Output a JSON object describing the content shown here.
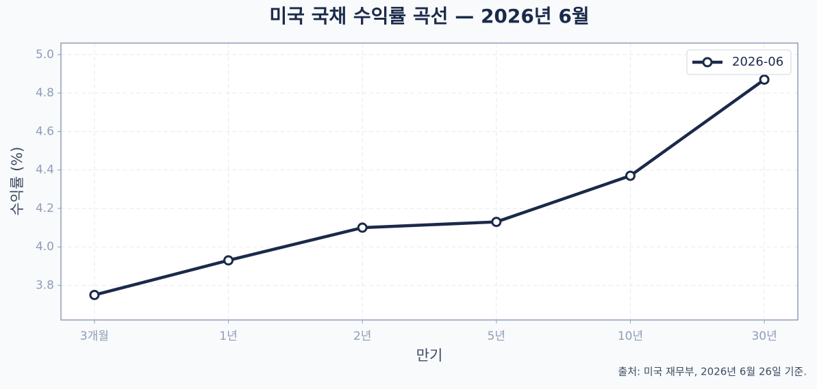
{
  "chart_data": {
    "type": "line",
    "title": "미국 국채 수익률 곡선 — 2026년 6월",
    "x_label": "만기",
    "y_label": "수익률 (%)",
    "source": "출처: 미국 재무부, 2026년 6월 26일 기준.",
    "categories": [
      "3개월",
      "1년",
      "2년",
      "5년",
      "10년",
      "30년"
    ],
    "series": [
      {
        "name": "2026-06",
        "color": "#1b2a4a",
        "values": [
          3.75,
          3.93,
          4.1,
          4.13,
          4.37,
          4.87
        ]
      }
    ],
    "ylim": [
      3.62,
      5.06
    ],
    "yticks": [
      3.8,
      {
        "value": 4.0,
        "label": "4.0"
      },
      4.2,
      4.4,
      4.6,
      4.8,
      {
        "value": 5.0,
        "label": "5.0"
      }
    ],
    "grid": true,
    "legend": "upper-right"
  }
}
